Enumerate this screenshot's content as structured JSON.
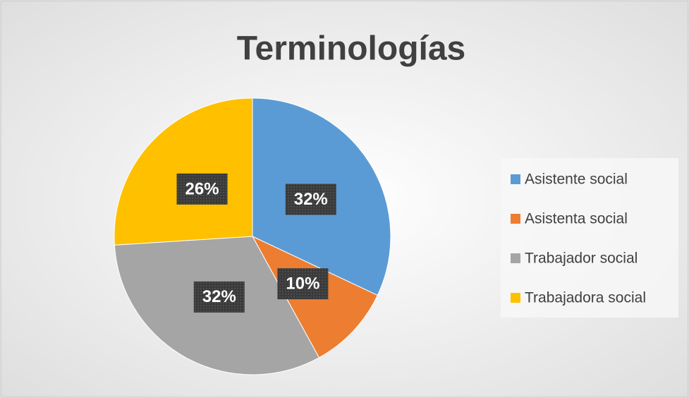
{
  "chart_data": {
    "type": "pie",
    "title": "Terminologías",
    "categories": [
      "Asistente social",
      "Asistenta social",
      "Trabajador social",
      "Trabajadora social"
    ],
    "values": [
      32,
      10,
      32,
      26
    ],
    "value_labels": [
      "32%",
      "10%",
      "32%",
      "26%"
    ],
    "colors": [
      "#5b9bd5",
      "#ed7d31",
      "#a5a5a5",
      "#ffc000"
    ],
    "legend": "right"
  }
}
